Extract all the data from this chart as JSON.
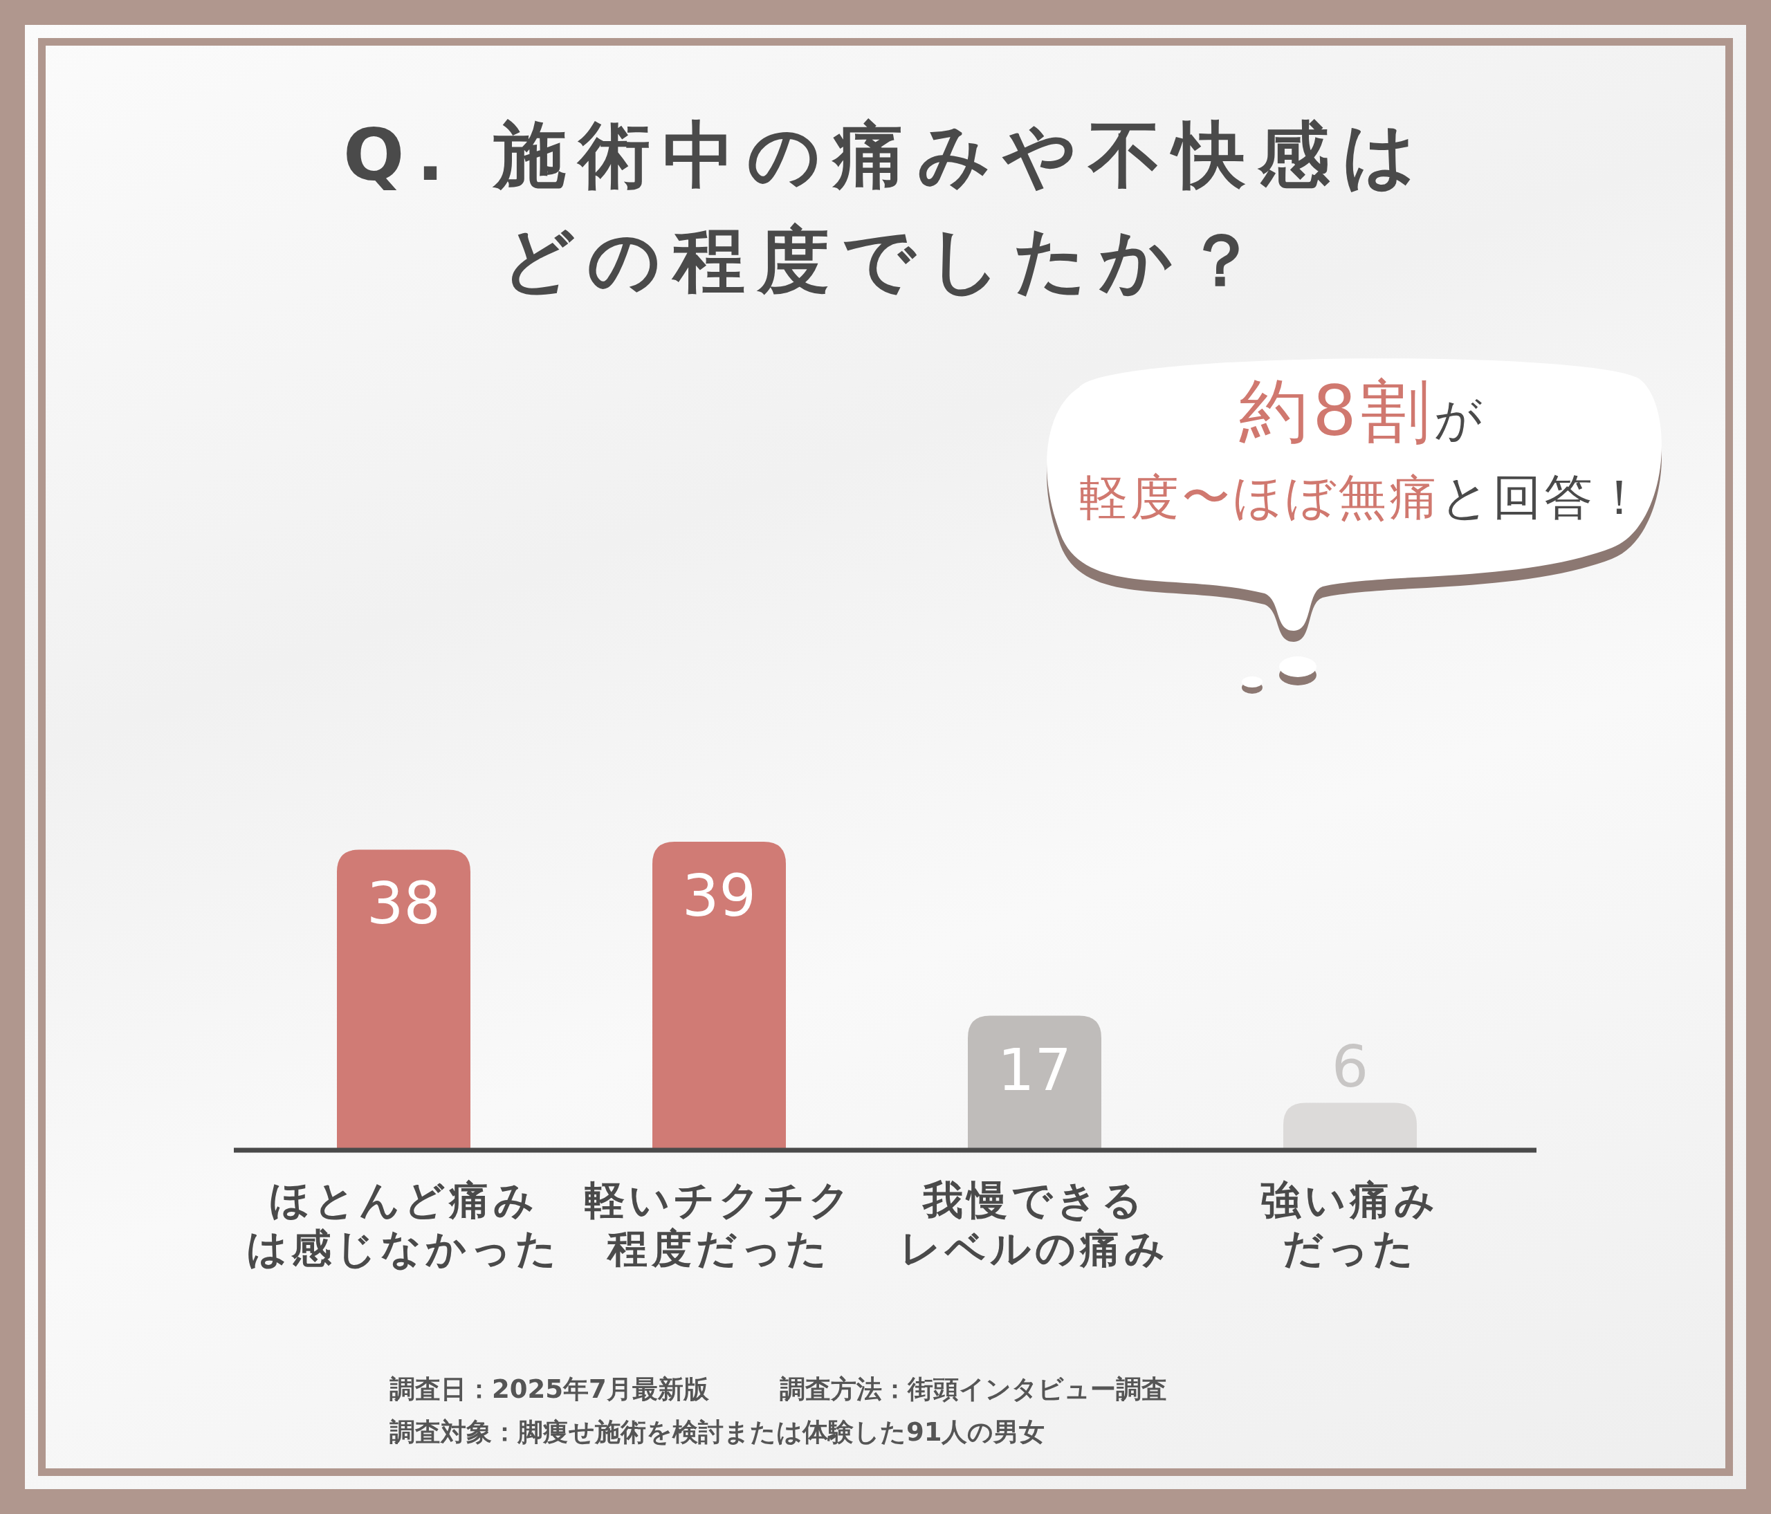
{
  "chart_data": {
    "type": "bar",
    "title": "Q. 施術中の痛みや不快感はどの程度でしたか？",
    "categories": [
      "ほとんど痛みは感じなかった",
      "軽いチクチク程度だった",
      "我慢できるレベルの痛み",
      "強い痛みだった"
    ],
    "values": [
      38,
      39,
      17,
      6
    ],
    "colors": [
      "#d07b75",
      "#d07b75",
      "#bfbcba",
      "#dcdad9"
    ],
    "data_labels": true,
    "tick_labels": "x",
    "annotations": [
      "約8割",
      "が",
      "軽度〜ほぼ無痛",
      "と回答！",
      "調査日：2025年7月最新版",
      "調査方法：街頭インタビュー調査",
      "調査対象：脚痩せ施術を検討または体験した91人の男女"
    ]
  }
}
